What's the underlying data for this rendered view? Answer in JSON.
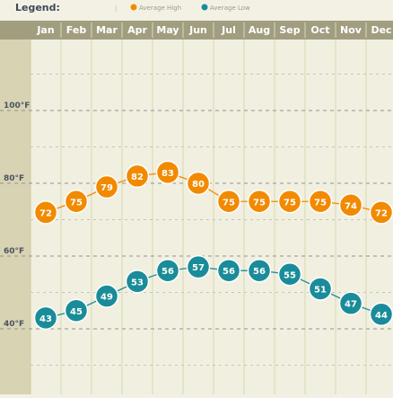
{
  "legend": {
    "title": "Legend:",
    "items": [
      {
        "label": "Average High",
        "color": "#f28a00"
      },
      {
        "label": "Average Low",
        "color": "#1a8c99"
      }
    ]
  },
  "colors": {
    "header_bar": "#a19e80",
    "left_axis_panel": "#d8d3b3",
    "plot_bg": "#f1efe0",
    "high": "#f28a00",
    "low": "#1a8c99"
  },
  "chart_data": {
    "type": "line",
    "categories": [
      "Jan",
      "Feb",
      "Mar",
      "Apr",
      "May",
      "Jun",
      "Jul",
      "Aug",
      "Sep",
      "Oct",
      "Nov",
      "Dec"
    ],
    "series": [
      {
        "name": "Average High",
        "values": [
          72,
          75,
          79,
          82,
          83,
          80,
          75,
          75,
          75,
          75,
          74,
          72
        ]
      },
      {
        "name": "Average Low",
        "values": [
          43,
          45,
          49,
          53,
          56,
          57,
          56,
          56,
          55,
          51,
          47,
          44
        ]
      }
    ],
    "y_ticks": [
      {
        "value": 100,
        "label": "100°F"
      },
      {
        "value": 80,
        "label": "80°F"
      },
      {
        "value": 60,
        "label": "60°F"
      },
      {
        "value": 40,
        "label": "40°F"
      }
    ],
    "ylim": [
      25,
      120
    ],
    "grid": true,
    "legend_position": "top-left"
  }
}
